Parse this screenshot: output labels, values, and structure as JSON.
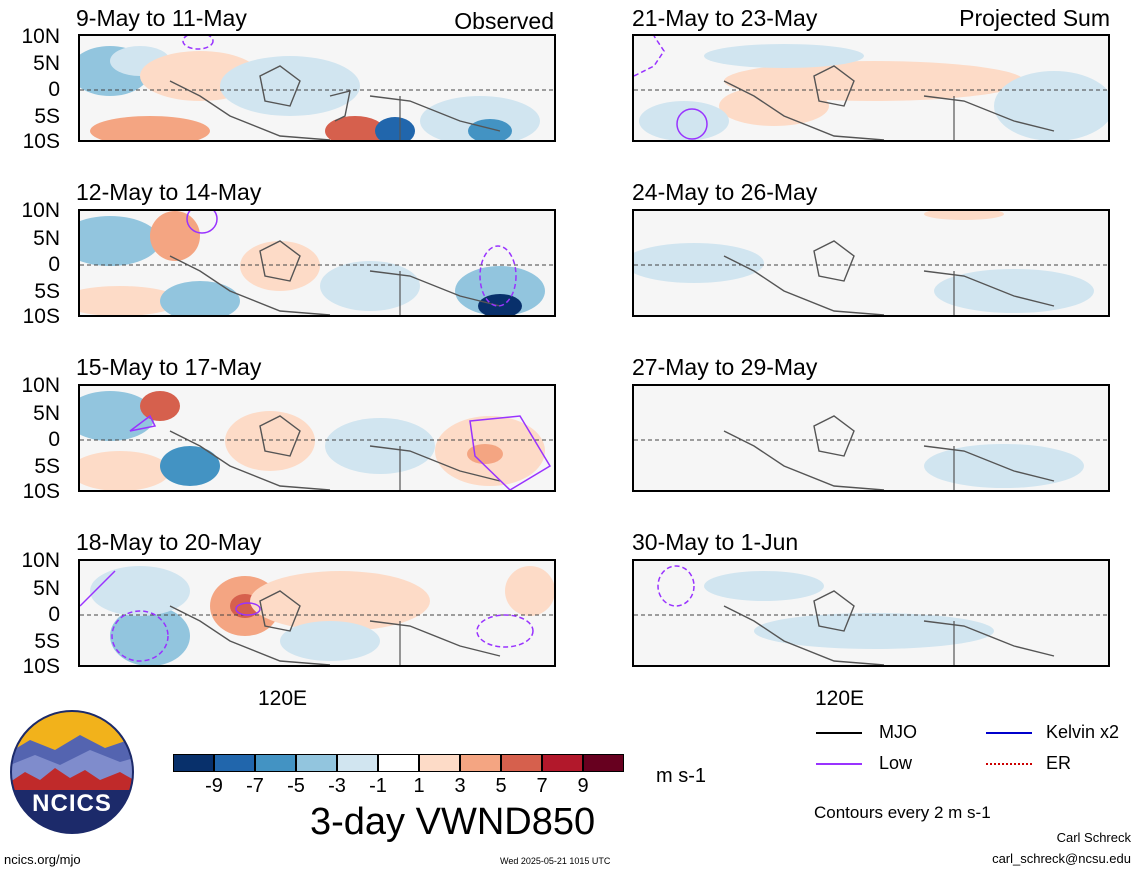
{
  "lat_labels": [
    "10N",
    "5N",
    "0",
    "5S",
    "10S"
  ],
  "lon_label": "120E",
  "observed_label": "Observed",
  "projected_label": "Projected Sum",
  "panels_left": [
    {
      "title": "9-May to 11-May"
    },
    {
      "title": "12-May to 14-May"
    },
    {
      "title": "15-May to 17-May"
    },
    {
      "title": "18-May to 20-May"
    }
  ],
  "panels_right": [
    {
      "title": "21-May to 23-May"
    },
    {
      "title": "24-May to 26-May"
    },
    {
      "title": "27-May to 29-May"
    },
    {
      "title": "30-May to 1-Jun"
    }
  ],
  "colorbar": {
    "colors": [
      "#08306b",
      "#2166ac",
      "#4393c3",
      "#92c5de",
      "#d1e5f0",
      "#ffffff",
      "#fddbc7",
      "#f4a582",
      "#d6604d",
      "#b2182b",
      "#67001f"
    ],
    "labels": [
      "-9",
      "-7",
      "-5",
      "-3",
      "-1",
      "1",
      "3",
      "5",
      "7",
      "9"
    ],
    "units": "m s-1"
  },
  "main_title": "3-day VWND850",
  "legend": {
    "items": [
      {
        "label": "MJO",
        "color": "#000000"
      },
      {
        "label": "Kelvin x2",
        "color": "#0000cc"
      },
      {
        "label": "Low",
        "color": "#9933ff"
      },
      {
        "label": "ER",
        "color": "#cc0000"
      }
    ],
    "contours_note": "Contours every 2 m s-1"
  },
  "logo_text": "NCICS",
  "footer": {
    "left": "ncics.org/mjo",
    "center": "Wed 2025-05-21 1015 UTC",
    "author": "Carl Schreck",
    "email": "carl_schreck@ncsu.edu"
  }
}
